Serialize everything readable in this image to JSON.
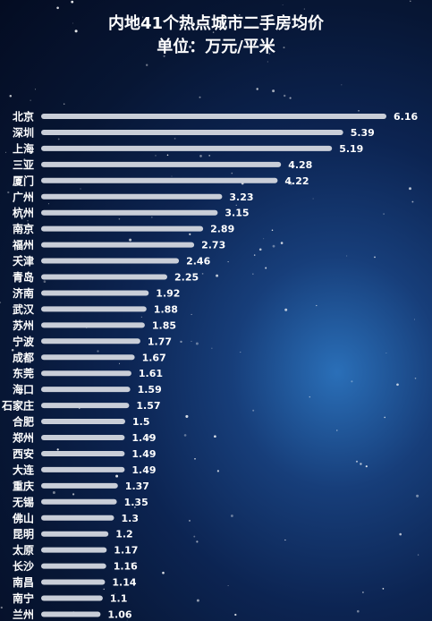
{
  "title": "内地41个热点城市二手房均价",
  "subtitle": "单位：万元/平米",
  "colors": {
    "bar": "#c9ced8",
    "text": "#ffffff"
  },
  "chart_data": {
    "type": "bar",
    "orientation": "horizontal",
    "title": "内地41个热点城市二手房均价",
    "subtitle": "单位：万元/平米",
    "categories": [
      "北京",
      "深圳",
      "上海",
      "三亚",
      "厦门",
      "广州",
      "杭州",
      "南京",
      "福州",
      "天津",
      "青岛",
      "济南",
      "武汉",
      "苏州",
      "宁波",
      "成都",
      "东莞",
      "海口",
      "石家庄",
      "合肥",
      "郑州",
      "西安",
      "大连",
      "重庆",
      "无锡",
      "佛山",
      "昆明",
      "太原",
      "长沙",
      "南昌",
      "南宁",
      "兰州"
    ],
    "values": [
      6.16,
      5.39,
      5.19,
      4.28,
      4.22,
      3.23,
      3.15,
      2.89,
      2.73,
      2.46,
      2.25,
      1.92,
      1.88,
      1.85,
      1.77,
      1.67,
      1.61,
      1.59,
      1.57,
      1.5,
      1.49,
      1.49,
      1.49,
      1.37,
      1.35,
      1.3,
      1.2,
      1.17,
      1.16,
      1.14,
      1.1,
      1.06
    ],
    "value_labels": [
      "6.16",
      "5.39",
      "5.19",
      "4.28",
      "4.22",
      "3.23",
      "3.15",
      "2.89",
      "2.73",
      "2.46",
      "2.25",
      "1.92",
      "1.88",
      "1.85",
      "1.77",
      "1.67",
      "1.61",
      "1.59",
      "1.57",
      "1.5",
      "1.49",
      "1.49",
      "1.49",
      "1.37",
      "1.35",
      "1.3",
      "1.2",
      "1.17",
      "1.16",
      "1.14",
      "1.1",
      "1.06"
    ],
    "xlim": [
      0,
      6.16
    ],
    "grid": false,
    "legend": "none"
  }
}
